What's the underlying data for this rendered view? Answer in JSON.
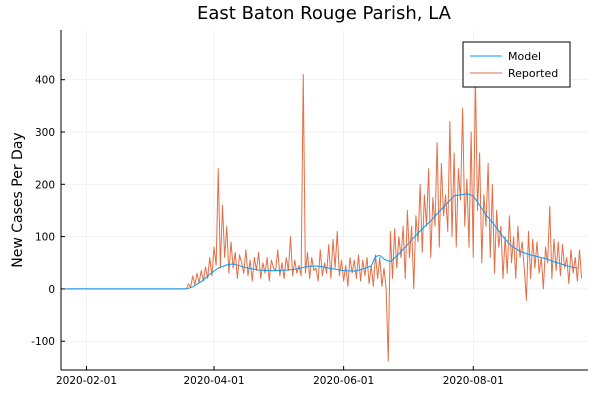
{
  "chart_data": {
    "type": "line",
    "title": "East Baton Rouge Parish, LA",
    "xlabel": "",
    "ylabel": "New Cases Per Day",
    "xlim": [
      "2020-01-20",
      "2020-09-24"
    ],
    "ylim": [
      -155,
      495
    ],
    "x_ticks": [
      "2020-02-01",
      "2020-04-01",
      "2020-06-01",
      "2020-08-01"
    ],
    "y_ticks": [
      -100,
      0,
      100,
      200,
      300,
      400
    ],
    "grid": true,
    "legend_position": "top-right",
    "series": [
      {
        "name": "Model",
        "color": "#009AFA",
        "points": [
          [
            "2020-01-22",
            0
          ],
          [
            "2020-02-15",
            0
          ],
          [
            "2020-03-10",
            0
          ],
          [
            "2020-03-19",
            0
          ],
          [
            "2020-03-22",
            4
          ],
          [
            "2020-03-26",
            14
          ],
          [
            "2020-03-30",
            28
          ],
          [
            "2020-04-03",
            40
          ],
          [
            "2020-04-07",
            46
          ],
          [
            "2020-04-10",
            48
          ],
          [
            "2020-04-14",
            43
          ],
          [
            "2020-04-18",
            39
          ],
          [
            "2020-04-22",
            36
          ],
          [
            "2020-04-28",
            35
          ],
          [
            "2020-05-05",
            36
          ],
          [
            "2020-05-10",
            38
          ],
          [
            "2020-05-14",
            42
          ],
          [
            "2020-05-18",
            44
          ],
          [
            "2020-05-21",
            43
          ],
          [
            "2020-05-26",
            39
          ],
          [
            "2020-06-01",
            35
          ],
          [
            "2020-06-06",
            34
          ],
          [
            "2020-06-10",
            38
          ],
          [
            "2020-06-14",
            44
          ],
          [
            "2020-06-16",
            62
          ],
          [
            "2020-06-18",
            64
          ],
          [
            "2020-06-20",
            57
          ],
          [
            "2020-06-23",
            52
          ],
          [
            "2020-06-26",
            63
          ],
          [
            "2020-06-30",
            80
          ],
          [
            "2020-07-04",
            98
          ],
          [
            "2020-07-08",
            115
          ],
          [
            "2020-07-12",
            130
          ],
          [
            "2020-07-16",
            148
          ],
          [
            "2020-07-20",
            165
          ],
          [
            "2020-07-23",
            178
          ],
          [
            "2020-07-26",
            180
          ],
          [
            "2020-07-29",
            182
          ],
          [
            "2020-08-01",
            178
          ],
          [
            "2020-08-04",
            160
          ],
          [
            "2020-08-07",
            142
          ],
          [
            "2020-08-11",
            122
          ],
          [
            "2020-08-15",
            100
          ],
          [
            "2020-08-19",
            82
          ],
          [
            "2020-08-23",
            72
          ],
          [
            "2020-08-27",
            66
          ],
          [
            "2020-08-31",
            62
          ],
          [
            "2020-09-04",
            58
          ],
          [
            "2020-09-08",
            52
          ],
          [
            "2020-09-12",
            47
          ],
          [
            "2020-09-16",
            42
          ],
          [
            "2020-09-19",
            40
          ]
        ]
      },
      {
        "name": "Reported",
        "color": "#E26F46",
        "points": [
          [
            "2020-01-22",
            0
          ],
          [
            "2020-02-15",
            0
          ],
          [
            "2020-03-10",
            0
          ],
          [
            "2020-03-19",
            0
          ],
          [
            "2020-03-20",
            10
          ],
          [
            "2020-03-21",
            3
          ],
          [
            "2020-03-22",
            25
          ],
          [
            "2020-03-23",
            8
          ],
          [
            "2020-03-24",
            30
          ],
          [
            "2020-03-25",
            12
          ],
          [
            "2020-03-26",
            35
          ],
          [
            "2020-03-27",
            15
          ],
          [
            "2020-03-28",
            42
          ],
          [
            "2020-03-29",
            20
          ],
          [
            "2020-03-30",
            60
          ],
          [
            "2020-03-31",
            25
          ],
          [
            "2020-04-01",
            80
          ],
          [
            "2020-04-02",
            45
          ],
          [
            "2020-04-03",
            230
          ],
          [
            "2020-04-04",
            40
          ],
          [
            "2020-04-05",
            160
          ],
          [
            "2020-04-06",
            60
          ],
          [
            "2020-04-07",
            120
          ],
          [
            "2020-04-08",
            30
          ],
          [
            "2020-04-09",
            90
          ],
          [
            "2020-04-10",
            40
          ],
          [
            "2020-04-11",
            70
          ],
          [
            "2020-04-12",
            20
          ],
          [
            "2020-04-13",
            65
          ],
          [
            "2020-04-14",
            50
          ],
          [
            "2020-04-15",
            30
          ],
          [
            "2020-04-16",
            75
          ],
          [
            "2020-04-17",
            25
          ],
          [
            "2020-04-18",
            55
          ],
          [
            "2020-04-19",
            15
          ],
          [
            "2020-04-20",
            60
          ],
          [
            "2020-04-21",
            35
          ],
          [
            "2020-04-22",
            70
          ],
          [
            "2020-04-23",
            20
          ],
          [
            "2020-04-24",
            50
          ],
          [
            "2020-04-25",
            30
          ],
          [
            "2020-04-26",
            60
          ],
          [
            "2020-04-27",
            15
          ],
          [
            "2020-04-28",
            55
          ],
          [
            "2020-04-29",
            40
          ],
          [
            "2020-04-30",
            35
          ],
          [
            "2020-05-01",
            75
          ],
          [
            "2020-05-02",
            25
          ],
          [
            "2020-05-03",
            50
          ],
          [
            "2020-05-04",
            20
          ],
          [
            "2020-05-05",
            60
          ],
          [
            "2020-05-06",
            35
          ],
          [
            "2020-05-07",
            100
          ],
          [
            "2020-05-08",
            25
          ],
          [
            "2020-05-09",
            55
          ],
          [
            "2020-05-10",
            30
          ],
          [
            "2020-05-11",
            45
          ],
          [
            "2020-05-12",
            25
          ],
          [
            "2020-05-13",
            410
          ],
          [
            "2020-05-14",
            30
          ],
          [
            "2020-05-15",
            70
          ],
          [
            "2020-05-16",
            20
          ],
          [
            "2020-05-17",
            60
          ],
          [
            "2020-05-18",
            35
          ],
          [
            "2020-05-19",
            40
          ],
          [
            "2020-05-20",
            15
          ],
          [
            "2020-05-21",
            75
          ],
          [
            "2020-05-22",
            25
          ],
          [
            "2020-05-23",
            50
          ],
          [
            "2020-05-24",
            30
          ],
          [
            "2020-05-25",
            85
          ],
          [
            "2020-05-26",
            20
          ],
          [
            "2020-05-27",
            95
          ],
          [
            "2020-05-28",
            40
          ],
          [
            "2020-05-29",
            110
          ],
          [
            "2020-05-30",
            25
          ],
          [
            "2020-05-31",
            55
          ],
          [
            "2020-06-01",
            15
          ],
          [
            "2020-06-02",
            45
          ],
          [
            "2020-06-03",
            5
          ],
          [
            "2020-06-04",
            60
          ],
          [
            "2020-06-05",
            30
          ],
          [
            "2020-06-06",
            55
          ],
          [
            "2020-06-07",
            20
          ],
          [
            "2020-06-08",
            65
          ],
          [
            "2020-06-09",
            15
          ],
          [
            "2020-06-10",
            55
          ],
          [
            "2020-06-11",
            25
          ],
          [
            "2020-06-12",
            60
          ],
          [
            "2020-06-13",
            10
          ],
          [
            "2020-06-14",
            45
          ],
          [
            "2020-06-15",
            5
          ],
          [
            "2020-06-16",
            65
          ],
          [
            "2020-06-17",
            20
          ],
          [
            "2020-06-18",
            60
          ],
          [
            "2020-06-19",
            5
          ],
          [
            "2020-06-20",
            40
          ],
          [
            "2020-06-21",
            0
          ],
          [
            "2020-06-22",
            -138
          ],
          [
            "2020-06-23",
            110
          ],
          [
            "2020-06-24",
            20
          ],
          [
            "2020-06-25",
            115
          ],
          [
            "2020-06-26",
            40
          ],
          [
            "2020-06-27",
            100
          ],
          [
            "2020-06-28",
            60
          ],
          [
            "2020-06-29",
            120
          ],
          [
            "2020-06-30",
            20
          ],
          [
            "2020-07-01",
            150
          ],
          [
            "2020-07-02",
            60
          ],
          [
            "2020-07-03",
            120
          ],
          [
            "2020-07-04",
            0
          ],
          [
            "2020-07-05",
            140
          ],
          [
            "2020-07-06",
            90
          ],
          [
            "2020-07-07",
            200
          ],
          [
            "2020-07-08",
            70
          ],
          [
            "2020-07-09",
            180
          ],
          [
            "2020-07-10",
            120
          ],
          [
            "2020-07-11",
            230
          ],
          [
            "2020-07-12",
            60
          ],
          [
            "2020-07-13",
            175
          ],
          [
            "2020-07-14",
            120
          ],
          [
            "2020-07-15",
            280
          ],
          [
            "2020-07-16",
            80
          ],
          [
            "2020-07-17",
            240
          ],
          [
            "2020-07-18",
            140
          ],
          [
            "2020-07-19",
            180
          ],
          [
            "2020-07-20",
            110
          ],
          [
            "2020-07-21",
            320
          ],
          [
            "2020-07-22",
            100
          ],
          [
            "2020-07-23",
            260
          ],
          [
            "2020-07-24",
            80
          ],
          [
            "2020-07-25",
            230
          ],
          [
            "2020-07-26",
            170
          ],
          [
            "2020-07-27",
            345
          ],
          [
            "2020-07-28",
            120
          ],
          [
            "2020-07-29",
            210
          ],
          [
            "2020-07-30",
            80
          ],
          [
            "2020-07-31",
            300
          ],
          [
            "2020-08-01",
            60
          ],
          [
            "2020-08-02",
            410
          ],
          [
            "2020-08-03",
            150
          ],
          [
            "2020-08-04",
            260
          ],
          [
            "2020-08-05",
            50
          ],
          [
            "2020-08-06",
            180
          ],
          [
            "2020-08-07",
            120
          ],
          [
            "2020-08-08",
            240
          ],
          [
            "2020-08-09",
            60
          ],
          [
            "2020-08-10",
            200
          ],
          [
            "2020-08-11",
            30
          ],
          [
            "2020-08-12",
            150
          ],
          [
            "2020-08-13",
            80
          ],
          [
            "2020-08-14",
            120
          ],
          [
            "2020-08-15",
            20
          ],
          [
            "2020-08-16",
            100
          ],
          [
            "2020-08-17",
            30
          ],
          [
            "2020-08-18",
            140
          ],
          [
            "2020-08-19",
            50
          ],
          [
            "2020-08-20",
            100
          ],
          [
            "2020-08-21",
            20
          ],
          [
            "2020-08-22",
            120
          ],
          [
            "2020-08-23",
            60
          ],
          [
            "2020-08-24",
            90
          ],
          [
            "2020-08-25",
            40
          ],
          [
            "2020-08-26",
            -22
          ],
          [
            "2020-08-27",
            110
          ],
          [
            "2020-08-28",
            20
          ],
          [
            "2020-08-29",
            95
          ],
          [
            "2020-08-30",
            40
          ],
          [
            "2020-08-31",
            90
          ],
          [
            "2020-09-01",
            30
          ],
          [
            "2020-09-02",
            60
          ],
          [
            "2020-09-03",
            0
          ],
          [
            "2020-09-04",
            80
          ],
          [
            "2020-09-05",
            50
          ],
          [
            "2020-09-06",
            158
          ],
          [
            "2020-09-07",
            20
          ],
          [
            "2020-09-08",
            95
          ],
          [
            "2020-09-09",
            35
          ],
          [
            "2020-09-10",
            90
          ],
          [
            "2020-09-11",
            25
          ],
          [
            "2020-09-12",
            85
          ],
          [
            "2020-09-13",
            40
          ],
          [
            "2020-09-14",
            60
          ],
          [
            "2020-09-15",
            10
          ],
          [
            "2020-09-16",
            75
          ],
          [
            "2020-09-17",
            30
          ],
          [
            "2020-09-18",
            60
          ],
          [
            "2020-09-19",
            15
          ],
          [
            "2020-09-20",
            75
          ],
          [
            "2020-09-21",
            20
          ]
        ]
      }
    ]
  }
}
